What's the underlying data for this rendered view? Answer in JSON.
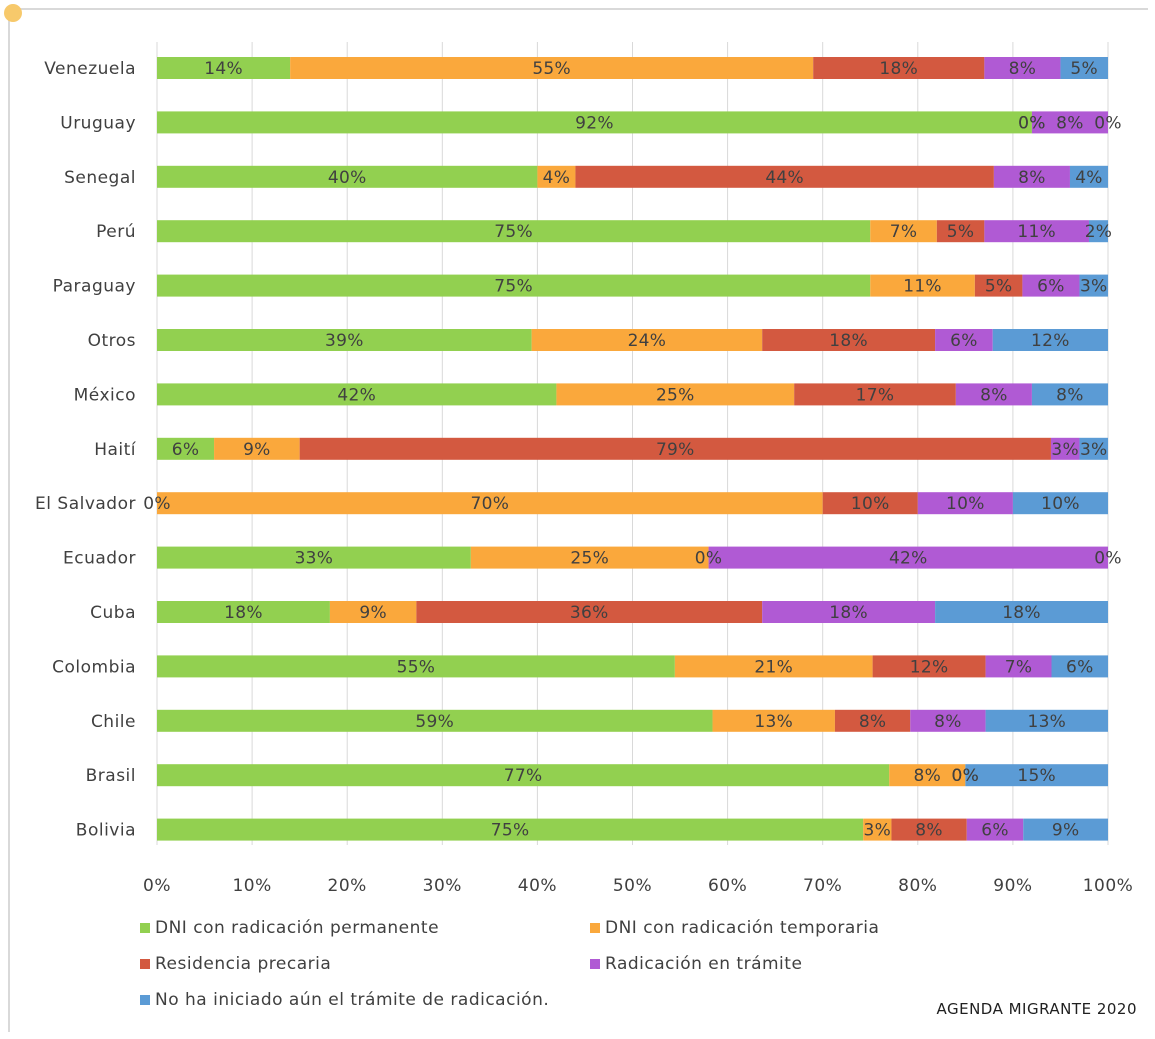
{
  "chart_data": {
    "type": "bar",
    "orientation": "horizontal",
    "stacked": "percent",
    "categories": [
      "Venezuela",
      "Uruguay",
      "Senegal",
      "Perú",
      "Paraguay",
      "Otros",
      "México",
      "Haití",
      "El Salvador",
      "Ecuador",
      "Cuba",
      "Colombia",
      "Chile",
      "Brasil",
      "Bolivia"
    ],
    "series": [
      {
        "name": "DNI con radicación permanente",
        "color": "#92d050",
        "values": [
          14,
          92,
          40,
          75,
          75,
          39,
          42,
          6,
          0,
          33,
          18,
          55,
          59,
          77,
          75
        ]
      },
      {
        "name": "DNI con radicación temporaria",
        "color": "#faa83c",
        "values": [
          55,
          0,
          4,
          7,
          11,
          24,
          25,
          9,
          70,
          25,
          9,
          21,
          13,
          8,
          3
        ]
      },
      {
        "name": "Residencia precaria",
        "color": "#d35940",
        "values": [
          18,
          0,
          44,
          5,
          5,
          18,
          17,
          79,
          10,
          0,
          36,
          12,
          8,
          0,
          8
        ]
      },
      {
        "name": "Radicación en trámite",
        "color": "#b05ad4",
        "values": [
          8,
          8,
          8,
          11,
          6,
          6,
          8,
          3,
          10,
          42,
          18,
          7,
          8,
          0,
          6
        ]
      },
      {
        "name": "No ha iniciado aún el trámite de radicación.",
        "color": "#5b9bd5",
        "values": [
          5,
          0,
          4,
          2,
          3,
          12,
          8,
          3,
          10,
          0,
          18,
          6,
          13,
          15,
          9
        ]
      }
    ],
    "x_ticks": [
      "0%",
      "10%",
      "20%",
      "30%",
      "40%",
      "50%",
      "60%",
      "70%",
      "80%",
      "90%",
      "100%"
    ],
    "xlim": [
      0,
      100
    ],
    "grid": "vertical",
    "legend": "bottom"
  },
  "source_note": "AGENDA MIGRANTE 2020"
}
